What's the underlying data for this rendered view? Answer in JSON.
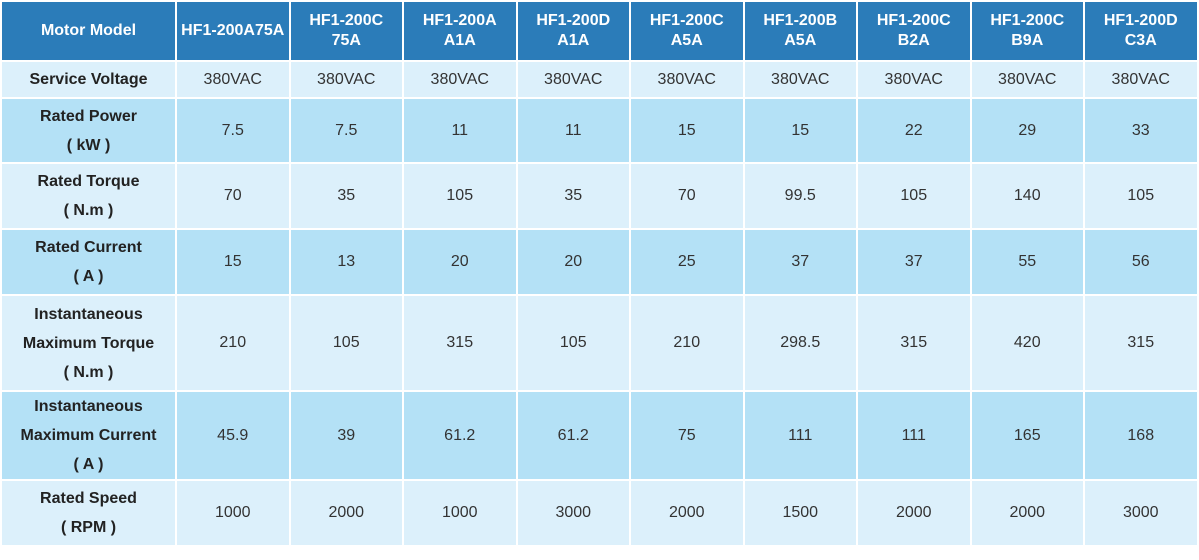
{
  "table": {
    "header": {
      "label": "Motor Model",
      "models": [
        "HF1-200A75A",
        "HF1-200C75A",
        "HF1-200AA1A",
        "HF1-200DA1A",
        "HF1-200CA5A",
        "HF1-200BA5A",
        "HF1-200CB2A",
        "HF1-200CB9A",
        "HF1-200DC3A"
      ]
    },
    "rows": [
      {
        "label": [
          "Service Voltage"
        ],
        "values": [
          "380VAC",
          "380VAC",
          "380VAC",
          "380VAC",
          "380VAC",
          "380VAC",
          "380VAC",
          "380VAC",
          "380VAC"
        ]
      },
      {
        "label": [
          "Rated Power",
          "( kW )"
        ],
        "values": [
          7.5,
          7.5,
          11,
          11,
          15,
          15,
          22,
          29,
          33
        ]
      },
      {
        "label": [
          "Rated Torque",
          "( N.m )"
        ],
        "values": [
          70,
          35,
          105,
          35,
          70,
          99.5,
          105,
          140,
          105
        ]
      },
      {
        "label": [
          "Rated Current",
          "( A )"
        ],
        "values": [
          15,
          13,
          20,
          20,
          25,
          37,
          37,
          55,
          56
        ]
      },
      {
        "label": [
          "Instantaneous",
          "Maximum Torque",
          "( N.m )"
        ],
        "values": [
          210,
          105,
          315,
          105,
          210,
          298.5,
          315,
          420,
          315
        ]
      },
      {
        "label": [
          "Instantaneous",
          "Maximum Current",
          "( A )"
        ],
        "values": [
          45.9,
          39,
          61.2,
          61.2,
          75,
          111,
          111,
          165,
          168
        ]
      },
      {
        "label": [
          "Rated Speed",
          "( RPM )"
        ],
        "values": [
          1000,
          2000,
          1000,
          3000,
          2000,
          1500,
          2000,
          2000,
          3000
        ]
      }
    ]
  }
}
